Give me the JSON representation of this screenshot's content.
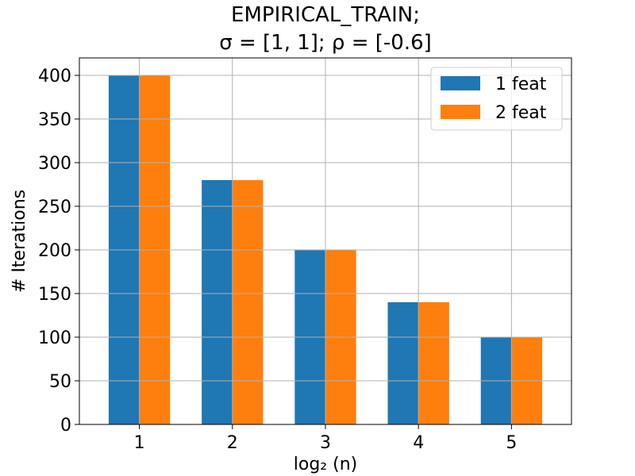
{
  "chart_data": {
    "type": "bar",
    "title_line1": "EMPIRICAL_TRAIN;",
    "title_line2": "σ = [1, 1];  ρ = [-0.6]",
    "xlabel": "log₂ (n)",
    "ylabel": "# Iterations",
    "categories": [
      "1",
      "2",
      "3",
      "4",
      "5"
    ],
    "series": [
      {
        "name": "1 feat",
        "values": [
          400,
          280,
          200,
          140,
          100
        ],
        "color": "#1f77b4"
      },
      {
        "name": "2 feat",
        "values": [
          400,
          280,
          200,
          140,
          100
        ],
        "color": "#ff7f0e"
      }
    ],
    "ylim": [
      0,
      420
    ],
    "yticks": [
      "0",
      "50",
      "100",
      "150",
      "200",
      "250",
      "300",
      "350",
      "400"
    ],
    "grid": true,
    "legend_position": "top-right"
  }
}
